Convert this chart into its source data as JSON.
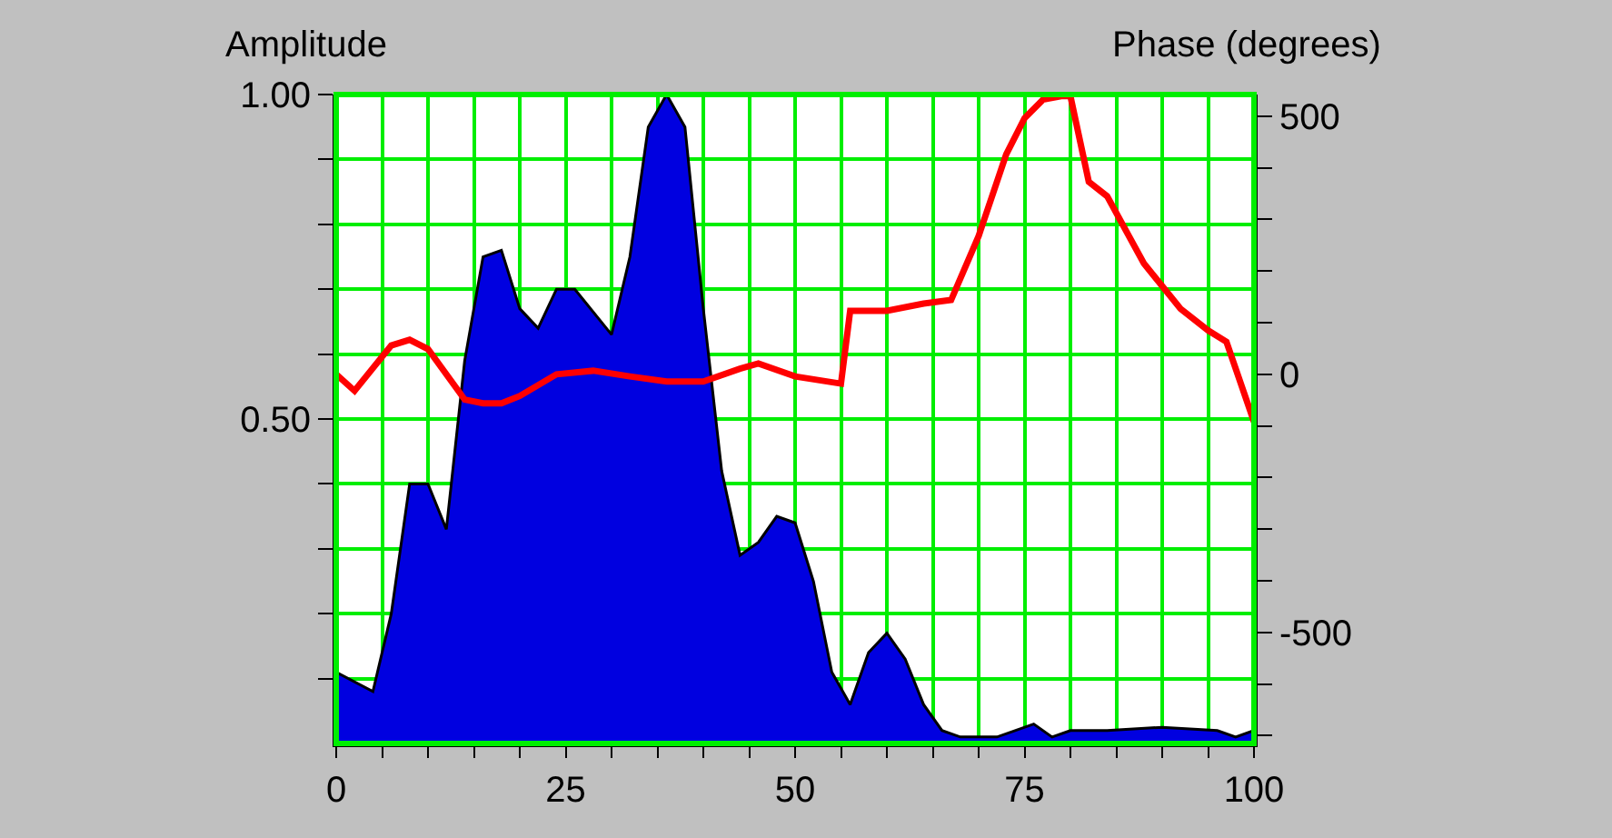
{
  "chart_data": {
    "type": "area",
    "ylabel": "Amplitude",
    "y2label": "Phase (degrees)",
    "x": [
      0,
      4,
      6,
      8,
      10,
      12,
      14,
      16,
      18,
      20,
      22,
      24,
      26,
      30,
      32,
      34,
      36,
      38,
      40,
      42,
      44,
      46,
      48,
      50,
      52,
      54,
      56,
      58,
      60,
      62,
      64,
      66,
      68,
      72,
      76,
      78,
      80,
      84,
      90,
      96,
      98,
      100
    ],
    "series": [
      {
        "color": "#0000e0",
        "values": [
          0.11,
          0.08,
          0.2,
          0.4,
          0.4,
          0.33,
          0.59,
          0.75,
          0.76,
          0.67,
          0.64,
          0.7,
          0.7,
          0.63,
          0.75,
          0.95,
          1.0,
          0.95,
          0.67,
          0.42,
          0.29,
          0.31,
          0.35,
          0.34,
          0.25,
          0.11,
          0.06,
          0.14,
          0.17,
          0.13,
          0.06,
          0.02,
          0.01,
          0.01,
          0.03,
          0.01,
          0.02,
          0.02,
          0.025,
          0.02,
          0.01,
          0.02
        ]
      },
      {
        "type": "line",
        "axis": "y2",
        "color": "#ff0000",
        "x": [
          0,
          2,
          6,
          8,
          10,
          14,
          16,
          18,
          20,
          24,
          28,
          32,
          36,
          40,
          44,
          46,
          50,
          55,
          56,
          60,
          64,
          67,
          70,
          73,
          75,
          77,
          79,
          80,
          82,
          84,
          88,
          92,
          95,
          97,
          100
        ],
        "values": [
          0,
          -32,
          56,
          67,
          49,
          -49,
          -56,
          -56,
          -42,
          0,
          7,
          -4,
          -14,
          -14,
          11,
          21,
          -4,
          -18,
          123,
          123,
          137,
          144,
          268,
          426,
          496,
          532,
          539,
          539,
          373,
          345,
          215,
          127,
          85,
          63,
          -92
        ]
      }
    ],
    "xlim": [
      0,
      100
    ],
    "xticks": [
      0,
      {
        "value": 5,
        "label": null
      },
      {
        "value": 10,
        "label": null
      },
      {
        "value": 15,
        "label": null
      },
      {
        "value": 20,
        "label": null
      },
      25,
      {
        "value": 30,
        "label": null
      },
      {
        "value": 35,
        "label": null
      },
      {
        "value": 40,
        "label": null
      },
      {
        "value": 45,
        "label": null
      },
      50,
      {
        "value": 55,
        "label": null
      },
      {
        "value": 60,
        "label": null
      },
      {
        "value": 65,
        "label": null
      },
      {
        "value": 70,
        "label": null
      },
      75,
      {
        "value": 80,
        "label": null
      },
      {
        "value": 85,
        "label": null
      },
      {
        "value": 90,
        "label": null
      },
      {
        "value": 95,
        "label": null
      },
      100
    ],
    "ylim": [
      0,
      1
    ],
    "yticks": [
      {
        "value": 0.1,
        "label": null
      },
      {
        "value": 0.2,
        "label": null
      },
      {
        "value": 0.3,
        "label": null
      },
      {
        "value": 0.4,
        "label": null
      },
      {
        "value": 0.5,
        "label": "0.50"
      },
      {
        "value": 0.6,
        "label": null
      },
      {
        "value": 0.7,
        "label": null
      },
      {
        "value": 0.8,
        "label": null
      },
      {
        "value": 0.9,
        "label": null
      },
      {
        "value": 1,
        "label": "1.00"
      }
    ],
    "y2lim": [
      -715,
      542
    ],
    "y2ticks": [
      {
        "value": -700,
        "label": null
      },
      {
        "value": -600,
        "label": null
      },
      -500,
      {
        "value": -400,
        "label": null
      },
      {
        "value": -300,
        "label": null
      },
      {
        "value": -200,
        "label": null
      },
      {
        "value": -100,
        "label": null
      },
      0,
      {
        "value": 100,
        "label": null
      },
      {
        "value": 200,
        "label": null
      },
      {
        "value": 300,
        "label": null
      },
      {
        "value": 400,
        "label": null
      },
      500
    ],
    "grid": true
  }
}
